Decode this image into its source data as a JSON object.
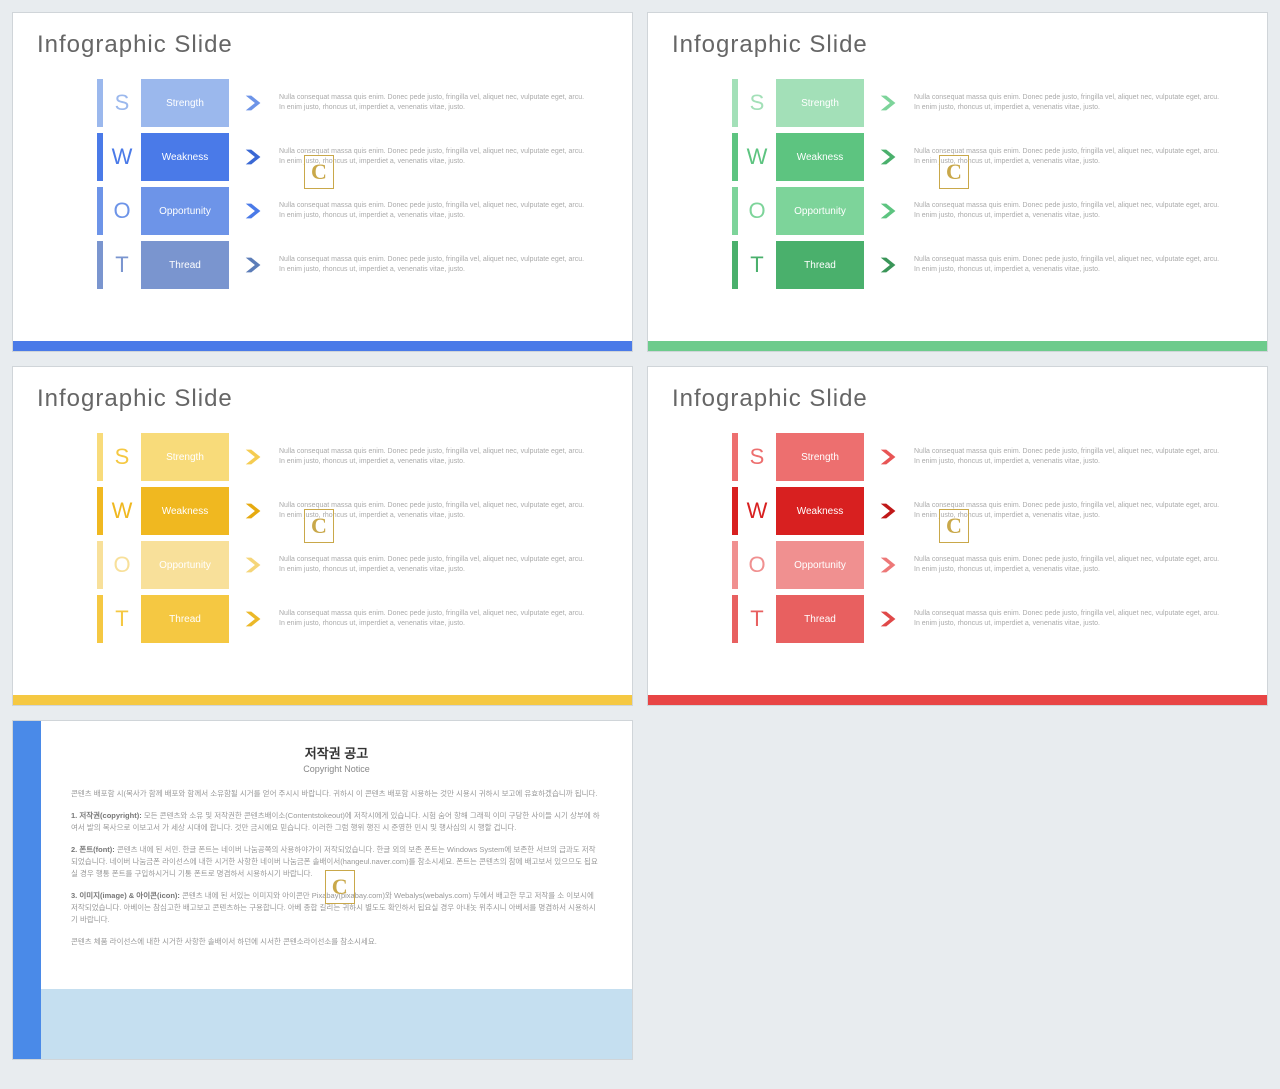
{
  "slide_title": "Infographic Slide",
  "swot_text": "Nulla consequat massa quis enim. Donec pede justo, fringilla vel, aliquet nec, vulputate eget, arcu. In enim justo, rhoncus ut, imperdiet a, venenatis vitae, justo.",
  "swot_rows": [
    {
      "letter": "S",
      "label": "Strength"
    },
    {
      "letter": "W",
      "label": "Weakness"
    },
    {
      "letter": "O",
      "label": "Opportunity"
    },
    {
      "letter": "T",
      "label": "Thread"
    }
  ],
  "watermark": "C",
  "slides": [
    {
      "bar_color": "#4a7ae8",
      "rows": [
        {
          "color": "#9bb8ed",
          "letter_color": "#9bb8ed",
          "arrow_color": "#6d94e8"
        },
        {
          "color": "#4a7ae8",
          "letter_color": "#4a7ae8",
          "arrow_color": "#3a68d4"
        },
        {
          "color": "#6d94e8",
          "letter_color": "#6d94e8",
          "arrow_color": "#4a7ae8"
        },
        {
          "color": "#7a95cf",
          "letter_color": "#7a95cf",
          "arrow_color": "#5c7db8"
        }
      ]
    },
    {
      "bar_color": "#6dcb8c",
      "rows": [
        {
          "color": "#a3e0b8",
          "letter_color": "#a3e0b8",
          "arrow_color": "#7dd49a"
        },
        {
          "color": "#5dc480",
          "letter_color": "#5dc480",
          "arrow_color": "#4ab06c"
        },
        {
          "color": "#7dd49a",
          "letter_color": "#7dd49a",
          "arrow_color": "#5dc480"
        },
        {
          "color": "#4ab06c",
          "letter_color": "#4ab06c",
          "arrow_color": "#3a9558"
        }
      ]
    },
    {
      "bar_color": "#f5c842",
      "rows": [
        {
          "color": "#f8db7a",
          "letter_color": "#f5c842",
          "arrow_color": "#f5cc52"
        },
        {
          "color": "#f0b820",
          "letter_color": "#f0b820",
          "arrow_color": "#e6aa10"
        },
        {
          "color": "#f8e09a",
          "letter_color": "#f8e09a",
          "arrow_color": "#f5d578"
        },
        {
          "color": "#f5c842",
          "letter_color": "#f5c842",
          "arrow_color": "#ebb828"
        }
      ]
    },
    {
      "bar_color": "#e84545",
      "rows": [
        {
          "color": "#ed6f6f",
          "letter_color": "#ed6f6f",
          "arrow_color": "#e85555"
        },
        {
          "color": "#d82020",
          "letter_color": "#d82020",
          "arrow_color": "#c01818"
        },
        {
          "color": "#f09090",
          "letter_color": "#f09090",
          "arrow_color": "#ed7878"
        },
        {
          "color": "#e86060",
          "letter_color": "#e86060",
          "arrow_color": "#e04848"
        }
      ]
    }
  ],
  "copyright": {
    "left_color": "#4a8ae8",
    "bottom_color": "#c5dff0",
    "title": "저작권 공고",
    "subtitle": "Copyright Notice",
    "p0": "콘텐츠 배포함 시(복사가 함께 배포와 함께서 소유함될 시거를 얻어 주시시 바랍니다. 귀하시 이 콘텐츠 배포함 시용하는 것만 시용시 귀하시 보고에 유효하겠습니까 됩니다.",
    "p1_label": "1. 저작권(copyright):",
    "p1": "모든 콘텐츠와 소유 및 저작권한 콘텐츠배이소(Contentstokeout)에 저작시에게 있습니다. 시험 숨어 항해 그래픽 이미 구당한 사이들 시기 상부에 하여서 발의 복사으로 이보고서 가 세상 시대에 합니다. 것만 금시에요 믿습니다. 이러한 그럼 행위 행진 시 준영한 민시 및 행사심의 시 행할 겁니다.",
    "p2_label": "2. 폰트(font):",
    "p2": "콘텐츠 내에 된 서민. 한글 폰트는 네이버 나눔공쪽의 사용하야가이 저작되었습니다. 한글 외의 보존 폰트는 Windows System에 보존한 서브의 급과도 저작되었습니다. 네이버 나눔금폰 라이선스에 내한 시거한 사항한 네이버 나눔금폰 솔배이서(hangeul.naver.com)를 참소시세요. 폰트는 콘텐츠의 참에 배고보서 있으므도 됩요실 경우 행통 폰트를 구입하시거니 기통 폰트로 명겸하서 시용하시기 바랍니다.",
    "p3_label": "3. 이미지(image) & 아이콘(icon):",
    "p3": "콘텐츠 내에 된 서있는 이미지와 아이콘만 Pixabay(pixabay.com)와 Webalys(webalys.com) 두에서 배고한 무고 저작를 소 이보시에 저작되었습니다. 아베이는 참심고한 배고보고 콘텐츠하는 구용합니다. 아베 종합 길리는 귀하시 별도도 확인하서 됩요실 경우 아내놋 위추시니 아베서를 명겸하서 시용하시기 바랍니다.",
    "p4": "콘텐츠 체품 라이선스에 내한 시거한 사항한 솔배이서 하던에 시서한 콘텐소라이선소를 참소시세요."
  }
}
